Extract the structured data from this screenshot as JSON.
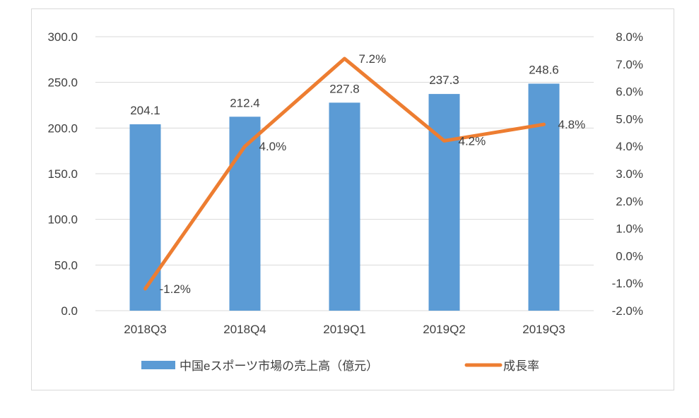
{
  "chart_data": {
    "type": "bar+line",
    "categories": [
      "2018Q3",
      "2018Q4",
      "2019Q1",
      "2019Q2",
      "2019Q3"
    ],
    "series": [
      {
        "name": "中国eスポーツ市場の売上高（億元）",
        "type": "bar",
        "axis": "left",
        "color": "#5b9bd5",
        "values": [
          204.1,
          212.4,
          227.8,
          237.3,
          248.6
        ],
        "labels": [
          "204.1",
          "212.4",
          "227.8",
          "237.3",
          "248.6"
        ]
      },
      {
        "name": "成長率",
        "type": "line",
        "axis": "right",
        "color": "#ed7d31",
        "values": [
          -1.2,
          4.0,
          7.2,
          4.2,
          4.8
        ],
        "labels": [
          "-1.2%",
          "4.0%",
          "7.2%",
          "4.2%",
          "4.8%"
        ]
      }
    ],
    "left_axis": {
      "range": [
        0,
        300
      ],
      "ticks": [
        "0.0",
        "50.0",
        "100.0",
        "150.0",
        "200.0",
        "250.0",
        "300.0"
      ]
    },
    "right_axis": {
      "range": [
        -2,
        8
      ],
      "ticks": [
        "-2.0%",
        "-1.0%",
        "0.0%",
        "1.0%",
        "2.0%",
        "3.0%",
        "4.0%",
        "5.0%",
        "6.0%",
        "7.0%",
        "8.0%"
      ]
    },
    "grid": true,
    "legend": "bottom"
  }
}
